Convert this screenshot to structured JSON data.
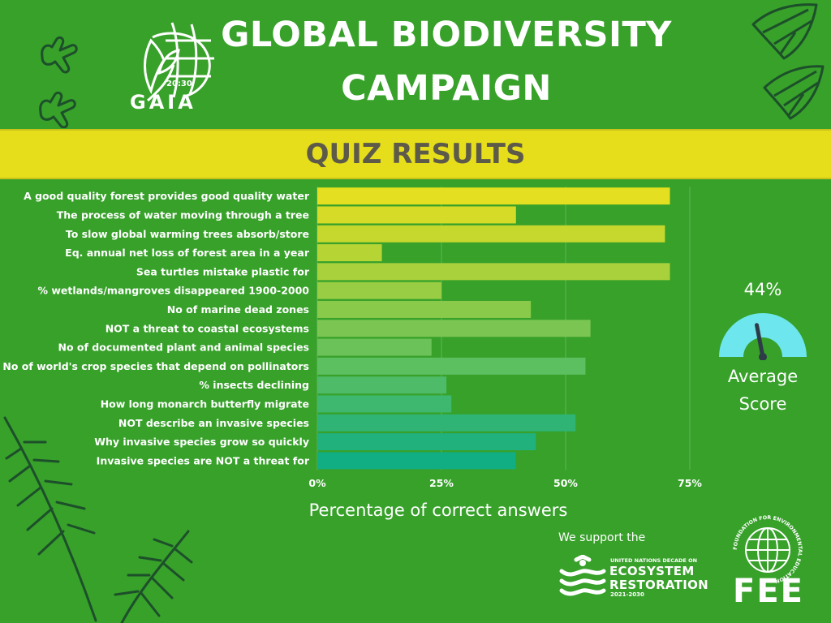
{
  "title": {
    "line1": "GLOBAL BIODIVERSITY",
    "line2": "CAMPAIGN"
  },
  "banner": "QUIZ RESULTS",
  "logos": {
    "gaia_small": "20:30",
    "gaia": "GAIA",
    "support": "We support the",
    "un_line1": "UNITED NATIONS DECADE ON",
    "un_line2": "ECOSYSTEM",
    "un_line3": "RESTORATION",
    "un_line4": "2021-2030",
    "fee_ring": "FOUNDATION FOR ENVIRONMENTAL EDUCATION",
    "fee": "FEE"
  },
  "gauge": {
    "value_text": "44%",
    "value": 44,
    "label_line1": "Average",
    "label_line2": "Score",
    "color": "#6ee6ee"
  },
  "colors": {
    "background": "#37a12a",
    "banner": "#e6de1b",
    "banner_text": "#5d5a4a",
    "bar_start": "#e4df20",
    "bar_end": "#11ad83"
  },
  "chart_data": {
    "type": "bar",
    "orientation": "horizontal",
    "categories": [
      "A good quality forest provides good quality water",
      "The process of water moving through a tree",
      "To  slow global warming trees absorb/store",
      "Eq. annual net loss of forest area in a year",
      "Sea turtles mistake plastic for",
      "% wetlands/mangroves disappeared 1900-2000",
      "No of marine dead zones",
      "NOT a threat to coastal ecosystems",
      "No of documented plant and animal species",
      "No of world's crop species that depend on pollinators",
      "% insects declining",
      "How long monarch butterfly migrate",
      "NOT describe an invasive species",
      "Why invasive species grow so quickly",
      "Invasive species are NOT a threat for"
    ],
    "values": [
      71,
      40,
      70,
      13,
      71,
      25,
      43,
      55,
      23,
      54,
      26,
      27,
      52,
      44,
      40
    ],
    "xlabel": "Percentage of correct answers",
    "ylabel": "",
    "xlim": [
      0,
      75
    ],
    "xticks": [
      "0%",
      "25%",
      "50%",
      "75%"
    ],
    "grid": true
  }
}
